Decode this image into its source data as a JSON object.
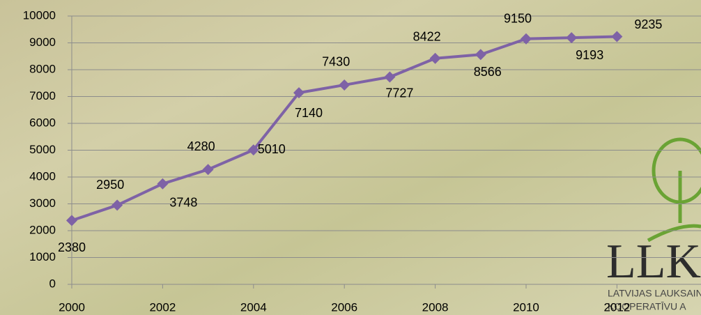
{
  "chart_data": {
    "type": "line",
    "x": [
      2000,
      2001,
      2002,
      2003,
      2004,
      2005,
      2006,
      2007,
      2008,
      2009,
      2010,
      2011,
      2012
    ],
    "series": [
      {
        "color": "#7e62a6",
        "values": [
          2380,
          2950,
          3748,
          4280,
          5010,
          7140,
          7430,
          7727,
          8422,
          8566,
          9150,
          9193,
          9235
        ]
      }
    ],
    "xlim": [
      2000,
      2013.85
    ],
    "xticks": [
      2000,
      2002,
      2004,
      2006,
      2008,
      2010,
      2012
    ],
    "ylim": [
      0,
      10000
    ],
    "yticks": [
      0,
      1000,
      2000,
      3000,
      4000,
      5000,
      6000,
      7000,
      8000,
      9000,
      10000
    ],
    "grid": true,
    "data_labels": true
  },
  "logo": {
    "name": "LLK",
    "lines": [
      "LATVIJAS LAUKSAIN",
      "KOOPERATĪVU A"
    ]
  }
}
